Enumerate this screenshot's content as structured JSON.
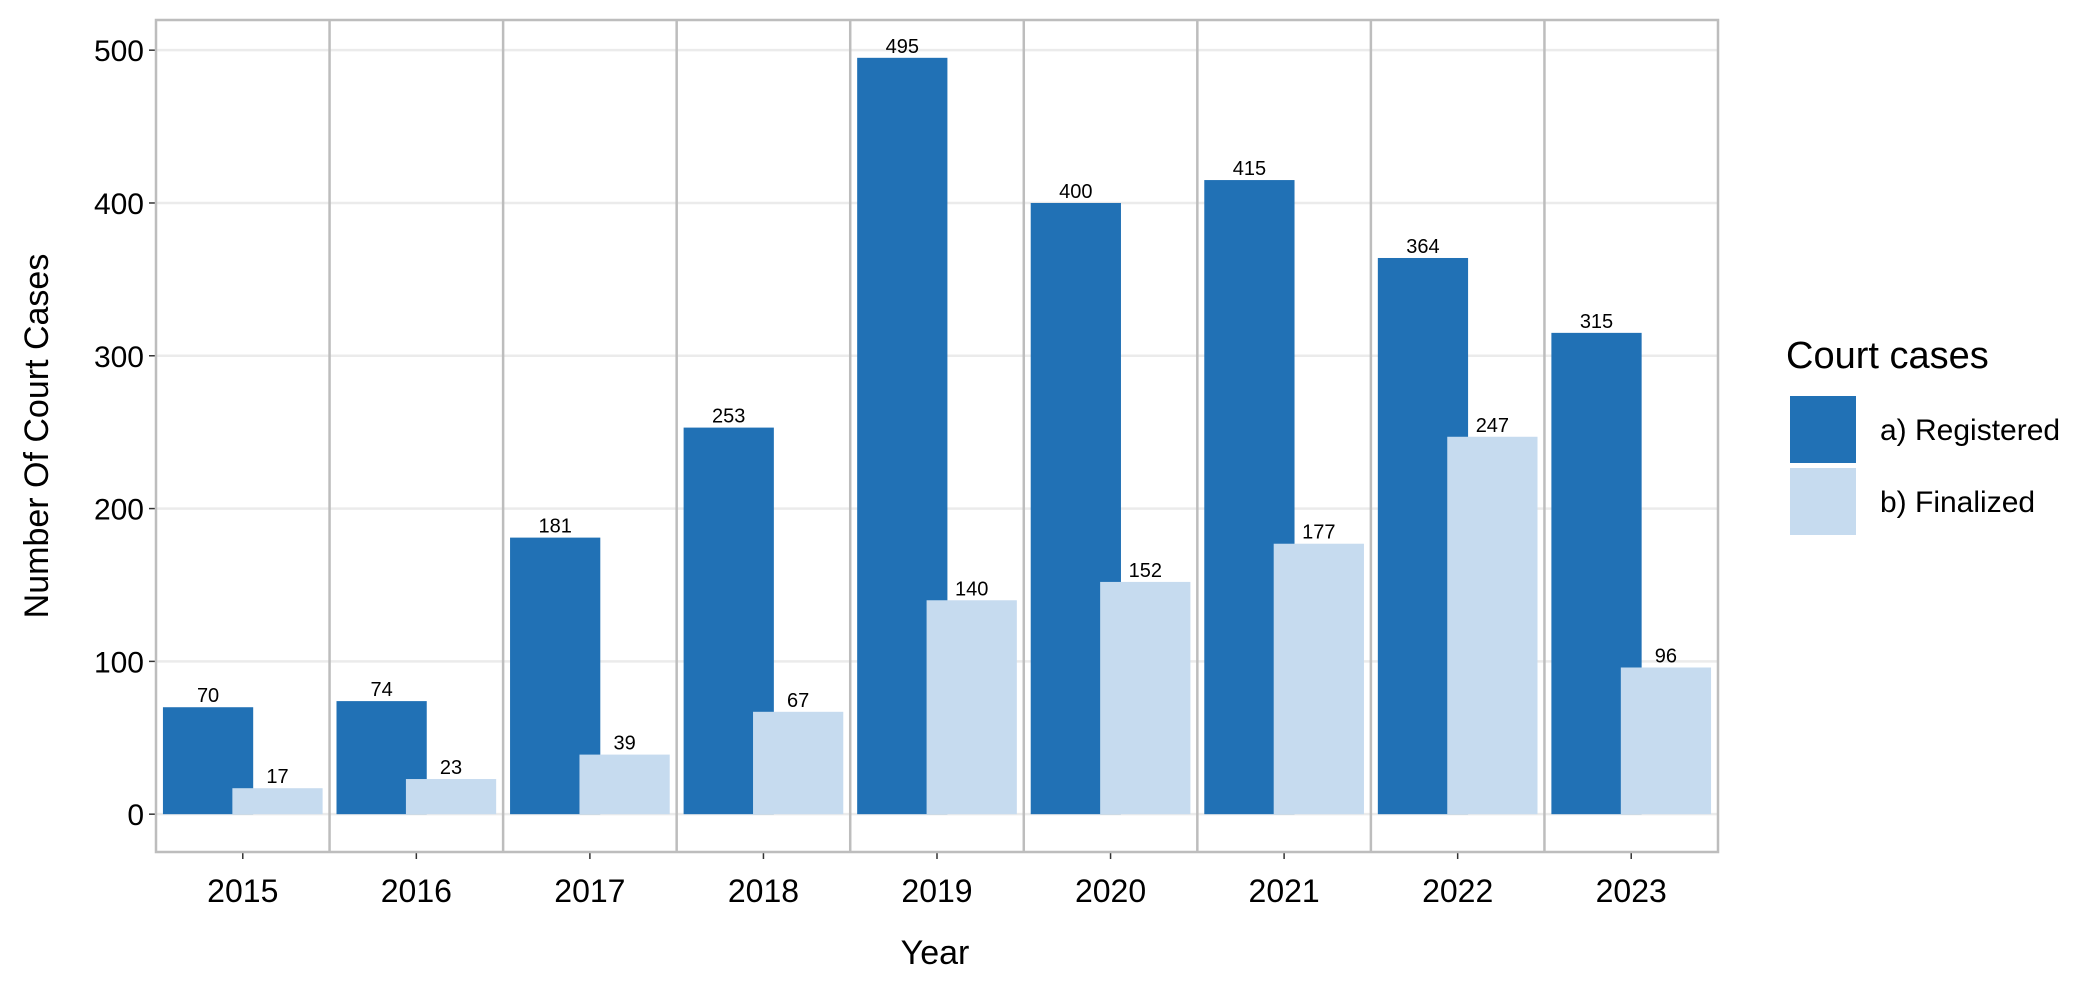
{
  "chart_data": {
    "type": "bar",
    "x_label": "Year",
    "y_label": "Number Of Court Cases",
    "legend_title": "Court cases",
    "legend_position": "right",
    "categories": [
      "2015",
      "2016",
      "2017",
      "2018",
      "2019",
      "2020",
      "2021",
      "2022",
      "2023"
    ],
    "series": [
      {
        "name": "a) Registered",
        "color": "#2171b5",
        "values": [
          70,
          74,
          181,
          253,
          495,
          400,
          415,
          364,
          315
        ]
      },
      {
        "name": "b) Finalized",
        "color": "#c6dbef",
        "values": [
          17,
          23,
          39,
          67,
          140,
          152,
          177,
          247,
          96
        ]
      }
    ],
    "ylim": [
      -24.75,
      519.75
    ],
    "yticks": [
      0,
      100,
      200,
      300,
      400,
      500
    ],
    "grid": true
  }
}
